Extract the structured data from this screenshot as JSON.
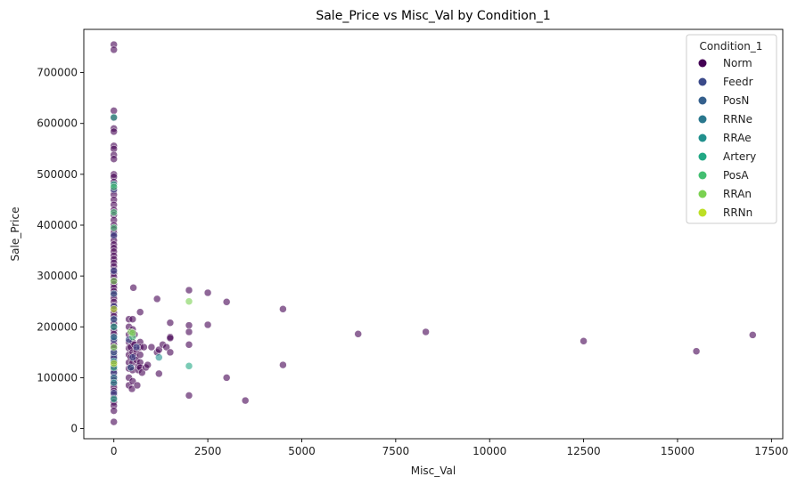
{
  "chart_data": {
    "type": "scatter",
    "title": "Sale_Price vs Misc_Val by Condition_1",
    "xlabel": "Misc_Val",
    "ylabel": "Sale_Price",
    "xlim": [
      -800,
      17800
    ],
    "ylim": [
      -20000,
      785000
    ],
    "xticks": [
      0,
      2500,
      5000,
      7500,
      10000,
      12500,
      15000,
      17500
    ],
    "yticks": [
      0,
      100000,
      200000,
      300000,
      400000,
      500000,
      600000,
      700000
    ],
    "grid": false,
    "legend": {
      "title": "Condition_1",
      "placement": "top-right",
      "entries": [
        "Norm",
        "Feedr",
        "PosN",
        "RRNe",
        "RRAe",
        "Artery",
        "PosA",
        "RRAn",
        "RRNn"
      ]
    },
    "colors": {
      "Norm": "#440154",
      "Feedr": "#3b4a8a",
      "PosN": "#35608d",
      "RRNe": "#2a788e",
      "RRAe": "#21908d",
      "Artery": "#22a884",
      "PosA": "#43bf71",
      "RRAn": "#7ad151",
      "RRNn": "#bddf26"
    },
    "series": [
      {
        "name": "Norm",
        "points": [
          [
            0,
            755000
          ],
          [
            0,
            745000
          ],
          [
            0,
            625000
          ],
          [
            0,
            611000
          ],
          [
            0,
            590000
          ],
          [
            0,
            584000
          ],
          [
            0,
            556000
          ],
          [
            0,
            550000
          ],
          [
            0,
            538000
          ],
          [
            0,
            530000
          ],
          [
            0,
            500000
          ],
          [
            0,
            495000
          ],
          [
            0,
            485000
          ],
          [
            0,
            475000
          ],
          [
            0,
            468000
          ],
          [
            0,
            460000
          ],
          [
            0,
            450000
          ],
          [
            0,
            440000
          ],
          [
            0,
            430000
          ],
          [
            0,
            420000
          ],
          [
            0,
            410000
          ],
          [
            0,
            400000
          ],
          [
            0,
            392000
          ],
          [
            0,
            385000
          ],
          [
            0,
            378000
          ],
          [
            0,
            370000
          ],
          [
            0,
            362000
          ],
          [
            0,
            355000
          ],
          [
            0,
            348000
          ],
          [
            0,
            340000
          ],
          [
            0,
            333000
          ],
          [
            0,
            326000
          ],
          [
            0,
            319000
          ],
          [
            0,
            312000
          ],
          [
            0,
            305000
          ],
          [
            0,
            298000
          ],
          [
            0,
            291000
          ],
          [
            0,
            284000
          ],
          [
            0,
            277000
          ],
          [
            0,
            270000
          ],
          [
            0,
            263000
          ],
          [
            0,
            256000
          ],
          [
            0,
            249000
          ],
          [
            0,
            242000
          ],
          [
            0,
            235000
          ],
          [
            0,
            228000
          ],
          [
            0,
            221000
          ],
          [
            0,
            214000
          ],
          [
            0,
            207000
          ],
          [
            0,
            200000
          ],
          [
            0,
            193000
          ],
          [
            0,
            186000
          ],
          [
            0,
            179000
          ],
          [
            0,
            172000
          ],
          [
            0,
            165000
          ],
          [
            0,
            158000
          ],
          [
            0,
            151000
          ],
          [
            0,
            144000
          ],
          [
            0,
            137000
          ],
          [
            0,
            130000
          ],
          [
            0,
            123000
          ],
          [
            0,
            116000
          ],
          [
            0,
            109000
          ],
          [
            0,
            102000
          ],
          [
            0,
            95000
          ],
          [
            0,
            88000
          ],
          [
            0,
            81000
          ],
          [
            0,
            74000
          ],
          [
            0,
            67000
          ],
          [
            0,
            60000
          ],
          [
            0,
            52000
          ],
          [
            0,
            45000
          ],
          [
            0,
            35000
          ],
          [
            0,
            13000
          ],
          [
            400,
            215000
          ],
          [
            400,
            200000
          ],
          [
            400,
            185000
          ],
          [
            400,
            170000
          ],
          [
            400,
            158000
          ],
          [
            400,
            145000
          ],
          [
            400,
            130000
          ],
          [
            400,
            118000
          ],
          [
            400,
            100000
          ],
          [
            400,
            85000
          ],
          [
            450,
            160000
          ],
          [
            450,
            140000
          ],
          [
            450,
            120000
          ],
          [
            480,
            78000
          ],
          [
            500,
            215000
          ],
          [
            500,
            195000
          ],
          [
            500,
            170000
          ],
          [
            500,
            150000
          ],
          [
            500,
            130000
          ],
          [
            500,
            115000
          ],
          [
            500,
            93000
          ],
          [
            520,
            277000
          ],
          [
            550,
            185000
          ],
          [
            550,
            165000
          ],
          [
            560,
            143000
          ],
          [
            600,
            155000
          ],
          [
            600,
            135000
          ],
          [
            620,
            85000
          ],
          [
            650,
            115000
          ],
          [
            650,
            123000
          ],
          [
            700,
            229000
          ],
          [
            700,
            170000
          ],
          [
            700,
            160000
          ],
          [
            700,
            145000
          ],
          [
            700,
            130000
          ],
          [
            700,
            120000
          ],
          [
            750,
            110000
          ],
          [
            800,
            160000
          ],
          [
            850,
            120000
          ],
          [
            900,
            125000
          ],
          [
            1000,
            160000
          ],
          [
            1150,
            255000
          ],
          [
            1150,
            150000
          ],
          [
            1200,
            155000
          ],
          [
            1200,
            108000
          ],
          [
            1300,
            165000
          ],
          [
            1400,
            160000
          ],
          [
            1500,
            208000
          ],
          [
            1500,
            180000
          ],
          [
            1500,
            178000
          ],
          [
            1500,
            150000
          ],
          [
            2000,
            272000
          ],
          [
            2000,
            203000
          ],
          [
            2000,
            190000
          ],
          [
            2000,
            165000
          ],
          [
            2000,
            65000
          ],
          [
            2500,
            267000
          ],
          [
            2500,
            204000
          ],
          [
            3000,
            249000
          ],
          [
            3000,
            100000
          ],
          [
            3500,
            55000
          ],
          [
            4500,
            235000
          ],
          [
            4500,
            125000
          ],
          [
            6500,
            186000
          ],
          [
            8300,
            190000
          ],
          [
            12500,
            172000
          ],
          [
            15500,
            152000
          ],
          [
            17000,
            184000
          ]
        ]
      },
      {
        "name": "Feedr",
        "points": [
          [
            0,
            470000
          ],
          [
            0,
            380000
          ],
          [
            0,
            310000
          ],
          [
            0,
            240000
          ],
          [
            0,
            175000
          ],
          [
            0,
            140000
          ],
          [
            0,
            110000
          ],
          [
            0,
            70000
          ],
          [
            400,
            175000
          ],
          [
            500,
            140000
          ],
          [
            600,
            160000
          ]
        ]
      },
      {
        "name": "PosN",
        "points": [
          [
            0,
            265000
          ],
          [
            0,
            215000
          ],
          [
            0,
            150000
          ],
          [
            450,
            120000
          ]
        ]
      },
      {
        "name": "RRNe",
        "points": [
          [
            0,
            180000
          ],
          [
            0,
            100000
          ]
        ]
      },
      {
        "name": "RRAe",
        "points": [
          [
            0,
            132000
          ],
          [
            0,
            90000
          ],
          [
            1200,
            140000
          ]
        ]
      },
      {
        "name": "Artery",
        "points": [
          [
            0,
            612000
          ],
          [
            0,
            480000
          ],
          [
            0,
            200000
          ],
          [
            0,
            120000
          ],
          [
            0,
            58000
          ],
          [
            2000,
            123000
          ]
        ]
      },
      {
        "name": "PosA",
        "points": [
          [
            0,
            475000
          ],
          [
            0,
            395000
          ],
          [
            0,
            425000
          ],
          [
            500,
            180000
          ]
        ]
      },
      {
        "name": "RRAn",
        "points": [
          [
            0,
            290000
          ],
          [
            0,
            160000
          ],
          [
            450,
            190000
          ],
          [
            500,
            188000
          ],
          [
            2000,
            250000
          ]
        ]
      },
      {
        "name": "RRNn",
        "points": [
          [
            0,
            235000
          ],
          [
            0,
            128000
          ]
        ]
      }
    ]
  }
}
